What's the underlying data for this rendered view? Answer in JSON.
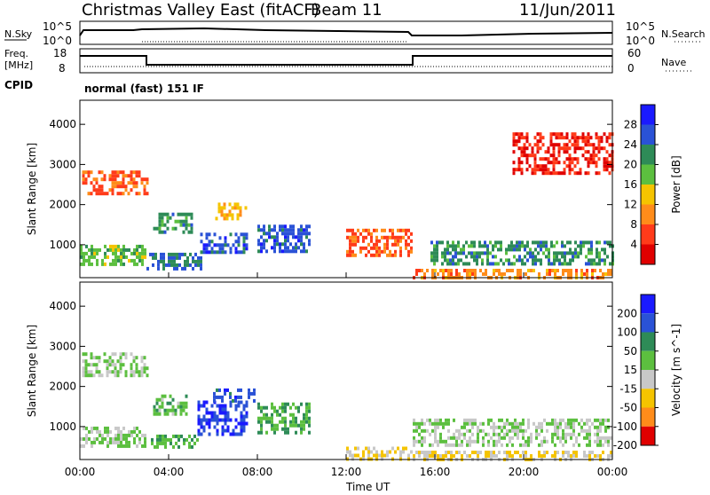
{
  "header": {
    "title": "Christmas Valley East (fitACF)",
    "beam": "Beam 11",
    "date": "11/Jun/2011"
  },
  "aux_panels": {
    "nsky_label": "N.Sky",
    "nsearch_label": "N.Search",
    "nsky_ticks": [
      "10^5",
      "10^0"
    ],
    "nsearch_ticks": [
      "10^5",
      "10^0"
    ],
    "freq_label_line1": "Freq.",
    "freq_label_line2": "[MHz]",
    "freq_ticks": [
      "18",
      "8"
    ],
    "nave_label": "Nave",
    "nave_ticks": [
      "60",
      "0"
    ],
    "cpid_label": "CPID",
    "cpid_text": "normal (fast) 151 IF"
  },
  "colors": {
    "power_scale": [
      "#1a1aff",
      "#2a52d6",
      "#2e8b57",
      "#5cbf3f",
      "#f5c400",
      "#ff8c1a",
      "#ff3b1a",
      "#e00000"
    ],
    "velocity_scale": [
      "#1a1aff",
      "#2a52d6",
      "#2e8b57",
      "#5cbf3f",
      "#c8c8c8",
      "#f5c400",
      "#ff8c1a",
      "#e00000"
    ]
  },
  "chart_data": [
    {
      "type": "heatmap",
      "name": "power",
      "ylabel": "Slant Range [km]",
      "xlabel": "Time UT",
      "x_ticks": [
        "00:00",
        "04:00",
        "08:00",
        "12:00",
        "16:00",
        "20:00",
        "00:00"
      ],
      "x_range_hours": [
        0,
        24
      ],
      "y_ticks": [
        1000,
        2000,
        3000,
        4000
      ],
      "ylim": [
        180,
        4600
      ],
      "colorbar_label": "Power [dB]",
      "colorbar_ticks": [
        28,
        24,
        20,
        16,
        12,
        8,
        4
      ],
      "colorbar_range": [
        0,
        32
      ],
      "regions": [
        {
          "t0": 0.0,
          "t1": 3.0,
          "r0": 550,
          "r1": 1000,
          "v": 18
        },
        {
          "t0": 0.1,
          "t1": 3.0,
          "r0": 2300,
          "r1": 2850,
          "v": 8
        },
        {
          "t0": 3.3,
          "t1": 5.0,
          "r0": 1350,
          "r1": 1800,
          "v": 22
        },
        {
          "t0": 3.0,
          "t1": 5.5,
          "r0": 400,
          "r1": 800,
          "v": 24
        },
        {
          "t0": 5.3,
          "t1": 7.5,
          "r0": 850,
          "r1": 1300,
          "v": 26
        },
        {
          "t0": 6.1,
          "t1": 7.5,
          "r0": 1650,
          "r1": 2050,
          "v": 12
        },
        {
          "t0": 8.0,
          "t1": 10.3,
          "r0": 800,
          "r1": 1500,
          "v": 26
        },
        {
          "t0": 12.0,
          "t1": 15.0,
          "r0": 700,
          "r1": 1400,
          "v": 7
        },
        {
          "t0": 15.8,
          "t1": 24.0,
          "r0": 500,
          "r1": 1100,
          "v": 22
        },
        {
          "t0": 15.0,
          "t1": 24.0,
          "r0": 180,
          "r1": 400,
          "v": 10
        },
        {
          "t0": 19.5,
          "t1": 24.0,
          "r0": 2800,
          "r1": 3800,
          "v": 4
        }
      ]
    },
    {
      "type": "heatmap",
      "name": "velocity",
      "ylabel": "Slant Range [km]",
      "xlabel": "Time UT",
      "x_ticks": [
        "00:00",
        "04:00",
        "08:00",
        "12:00",
        "16:00",
        "20:00",
        "00:00"
      ],
      "x_range_hours": [
        0,
        24
      ],
      "y_ticks": [
        1000,
        2000,
        3000,
        4000
      ],
      "ylim": [
        180,
        4600
      ],
      "colorbar_label": "Velocity [m s^-1]",
      "colorbar_ticks": [
        200,
        100,
        50,
        15,
        -15,
        -50,
        -100,
        -200
      ],
      "colorbar_range": [
        -250,
        250
      ],
      "regions": [
        {
          "t0": 0.0,
          "t1": 3.0,
          "r0": 550,
          "r1": 1000,
          "v": 0
        },
        {
          "t0": 0.1,
          "t1": 3.0,
          "r0": 2300,
          "r1": 2850,
          "v": 0
        },
        {
          "t0": 3.3,
          "t1": 4.8,
          "r0": 1350,
          "r1": 1800,
          "v": 40
        },
        {
          "t0": 3.2,
          "t1": 5.3,
          "r0": 500,
          "r1": 800,
          "v": 40
        },
        {
          "t0": 5.3,
          "t1": 7.5,
          "r0": 850,
          "r1": 1650,
          "v": 180
        },
        {
          "t0": 6.0,
          "t1": 8.0,
          "r0": 1600,
          "r1": 1950,
          "v": 150
        },
        {
          "t0": 8.0,
          "t1": 10.3,
          "r0": 850,
          "r1": 1600,
          "v": 60
        },
        {
          "t0": 12.0,
          "t1": 15.0,
          "r0": 200,
          "r1": 500,
          "v": -60
        },
        {
          "t0": 15.0,
          "t1": 24.0,
          "r0": 500,
          "r1": 1200,
          "v": 0
        },
        {
          "t0": 15.0,
          "t1": 24.0,
          "r0": 180,
          "r1": 400,
          "v": -60
        }
      ]
    }
  ]
}
